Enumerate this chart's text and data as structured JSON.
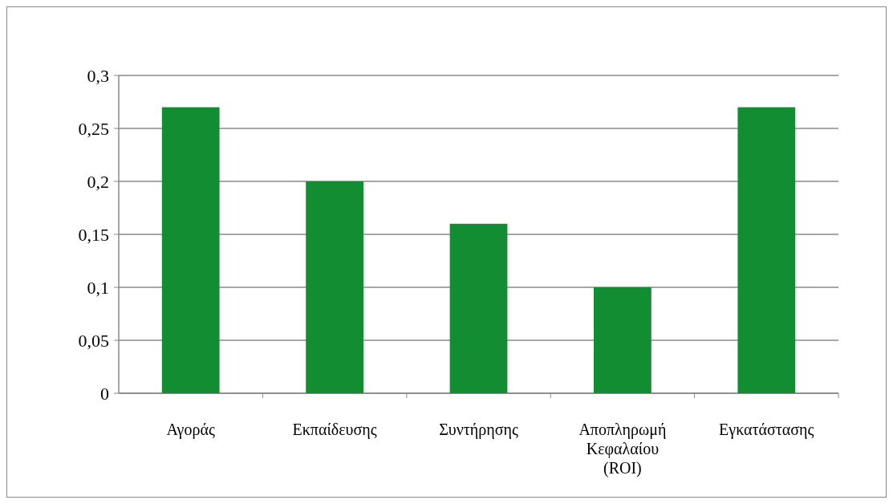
{
  "chart_data": {
    "type": "bar",
    "categories": [
      "Αγοράς",
      "Εκπαίδευσης",
      "Συντήρησης",
      "Αποπληρωμή Κεφαλαίου (ROI)",
      "Εγκατάστασης"
    ],
    "values": [
      0.27,
      0.2,
      0.16,
      0.1,
      0.27
    ],
    "color": "#138d31",
    "ylim": [
      0,
      0.3
    ],
    "yticks": [
      {
        "value": 0,
        "label": "0"
      },
      {
        "value": 0.05,
        "label": "0,05"
      },
      {
        "value": 0.1,
        "label": "0,1"
      },
      {
        "value": 0.15,
        "label": "0,15"
      },
      {
        "value": 0.2,
        "label": "0,2"
      },
      {
        "value": 0.25,
        "label": "0,25"
      },
      {
        "value": 0.3,
        "label": "0,3"
      }
    ],
    "grid": "y"
  }
}
